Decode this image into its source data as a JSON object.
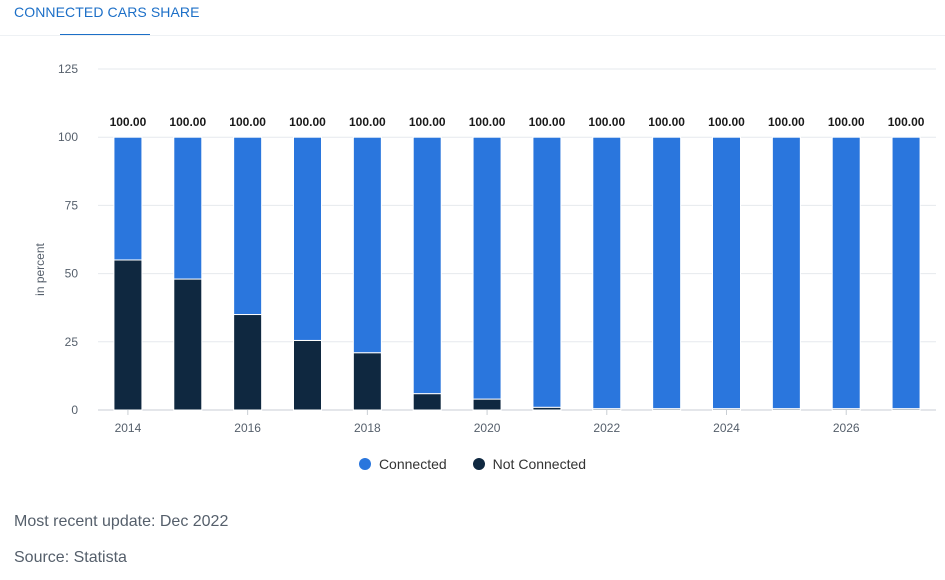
{
  "header": {
    "title": "CONNECTED CARS SHARE"
  },
  "chart_data": {
    "type": "bar",
    "stacked": true,
    "categories": [
      "2014",
      "2015",
      "2016",
      "2017",
      "2018",
      "2019",
      "2020",
      "2021",
      "2022",
      "2023",
      "2024",
      "2025",
      "2026",
      "2027"
    ],
    "x_tick_labels": [
      "2014",
      "2016",
      "2018",
      "2020",
      "2022",
      "2024",
      "2026"
    ],
    "series": [
      {
        "name": "Not Connected",
        "color": "#0f2840",
        "values": [
          55,
          48,
          35,
          25.5,
          21,
          6,
          4,
          1,
          0.5,
          0.5,
          0.5,
          0.5,
          0.5,
          0.5
        ]
      },
      {
        "name": "Connected",
        "color": "#2a76dd",
        "values": [
          45,
          52,
          65,
          74.5,
          79,
          94,
          96,
          99,
          99.5,
          99.5,
          99.5,
          99.5,
          99.5,
          99.5
        ]
      }
    ],
    "totals_labels": [
      "100.00",
      "100.00",
      "100.00",
      "100.00",
      "100.00",
      "100.00",
      "100.00",
      "100.00",
      "100.00",
      "100.00",
      "100.00",
      "100.00",
      "100.00",
      "100.00"
    ],
    "ylabel": "in percent",
    "xlabel": "",
    "ylim": [
      0,
      125
    ],
    "yticks": [
      0,
      25,
      50,
      75,
      100,
      125
    ],
    "grid": true,
    "legend_position": "bottom-center"
  },
  "legend": {
    "items": [
      {
        "label": "Connected",
        "color": "#2a76dd"
      },
      {
        "label": "Not Connected",
        "color": "#0f2840"
      }
    ]
  },
  "footer": {
    "update": "Most recent update: Dec 2022",
    "source": "Source: Statista"
  }
}
